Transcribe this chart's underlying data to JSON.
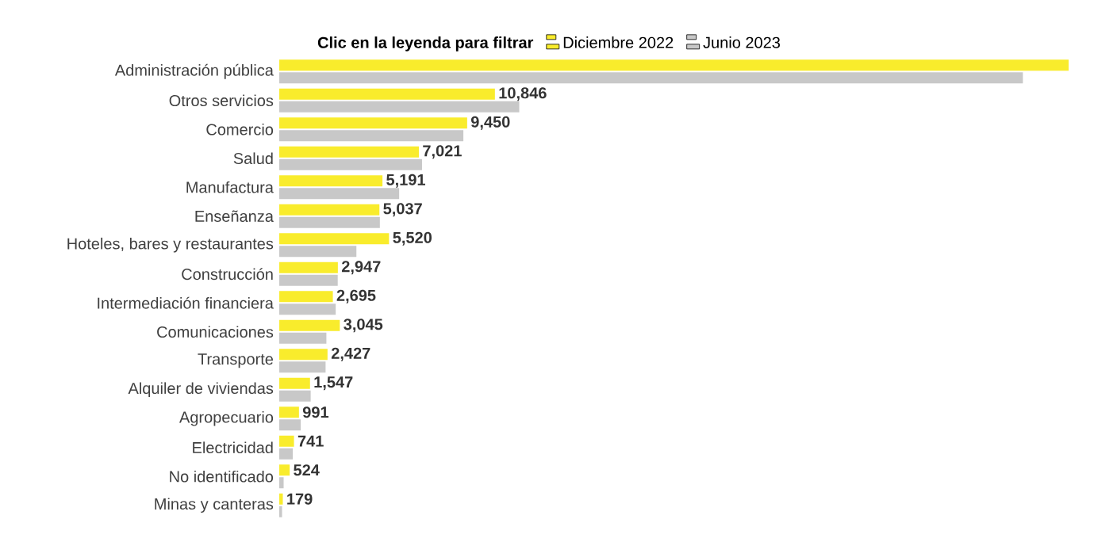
{
  "chart_data": {
    "type": "bar",
    "orientation": "horizontal",
    "legend_title": "Clic en la leyenda para filtrar",
    "legend": "top",
    "categories": [
      "Administración pública",
      "Otros servicios",
      "Comercio",
      "Salud",
      "Manufactura",
      "Enseñanza",
      "Hoteles, bares y restaurantes",
      "Construcción",
      "Intermediación financiera",
      "Comunicaciones",
      "Transporte",
      "Alquiler de viviendas",
      "Agropecuario",
      "Electricidad",
      "No identificado",
      "Minas y canteras"
    ],
    "series": [
      {
        "name": "Diciembre 2022",
        "color": "#f9ec2c",
        "values": [
          39700,
          10846,
          9450,
          7021,
          5191,
          5037,
          5520,
          2947,
          2695,
          3045,
          2427,
          1547,
          991,
          741,
          524,
          179
        ],
        "value_labels": [
          null,
          "10,846",
          "9,450",
          "7,021",
          "5,191",
          "5,037",
          "5,520",
          "2,947",
          "2,695",
          "3,045",
          "2,427",
          "1,547",
          "991",
          "741",
          "524",
          "179"
        ]
      },
      {
        "name": "Junio 2023",
        "color": "#c8c8c8",
        "values": [
          37400,
          12070,
          9260,
          7180,
          6030,
          5060,
          3880,
          2940,
          2840,
          2370,
          2330,
          1580,
          1080,
          680,
          220,
          140
        ]
      }
    ]
  }
}
